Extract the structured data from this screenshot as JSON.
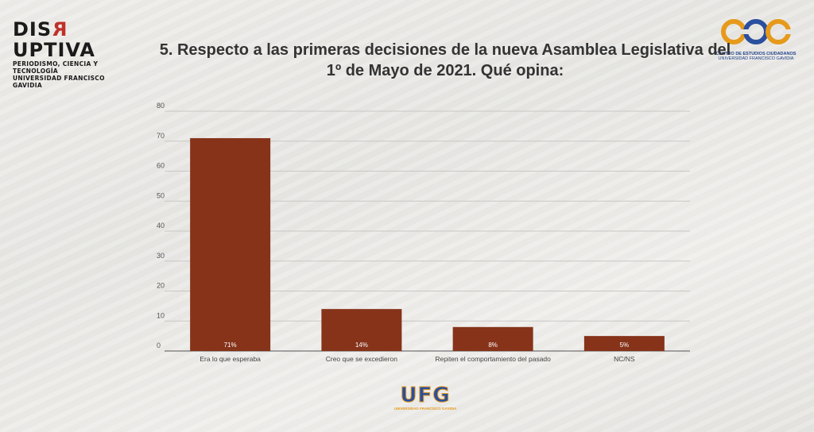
{
  "branding": {
    "left_logo_prefix": "DIS",
    "left_logo_r": "R",
    "left_logo_suffix": "UPTIVA",
    "left_logo_line1": "PERIODISMO, CIENCIA Y TECNOLOGÍA",
    "left_logo_line2": "UNIVERSIDAD FRANCISCO GAVIDIA",
    "right_logo_mark": "cec",
    "right_logo_line1": "CENTRO DE ESTUDIOS CIUDADANOS",
    "right_logo_line2": "UNIVERSIDAD FRANCISCO GAVIDIA",
    "bottom_logo_mark": "UFG",
    "bottom_logo_line": "UNIVERSIDAD FRANCISCO GAVIDIA",
    "colors": {
      "bar": "#86331a",
      "orange": "#e69a1c",
      "blue": "#2a4f9e",
      "accent_red": "#c0302a"
    }
  },
  "chart_data": {
    "type": "bar",
    "title": "5. Respecto a las primeras decisiones de la nueva Asamblea Legislativa del 1º de Mayo de 2021. Qué opina:",
    "categories": [
      "Era lo que esperaba",
      "Creo que se excedieron",
      "Repiten el comportamiento del pasado",
      "NC/NS"
    ],
    "values": [
      71,
      14,
      8,
      5
    ],
    "data_labels": [
      "71%",
      "14%",
      "8%",
      "5%"
    ],
    "y_ticks": [
      0,
      10,
      20,
      30,
      40,
      50,
      60,
      70,
      80
    ],
    "ylim": [
      0,
      80
    ],
    "grid": true,
    "legend": "none",
    "xlabel": "",
    "ylabel": ""
  }
}
